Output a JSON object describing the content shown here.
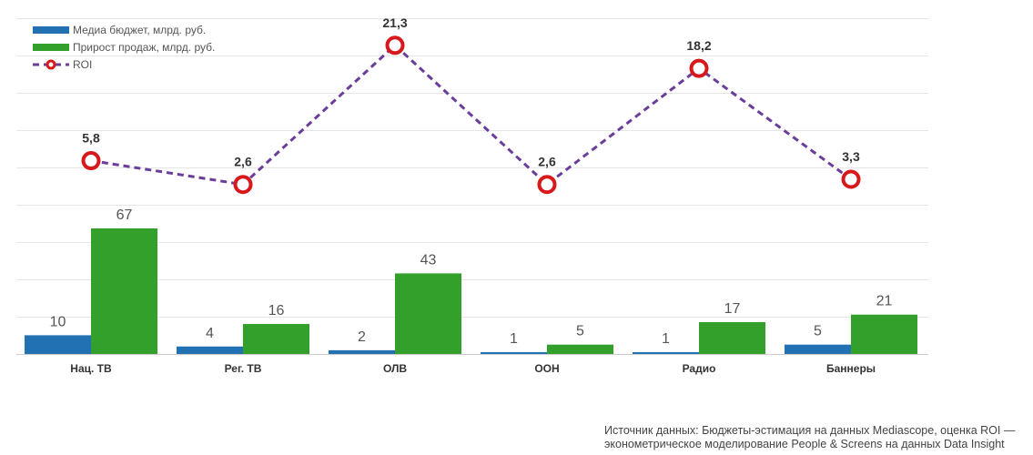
{
  "chart_data": {
    "type": "bar+line",
    "categories": [
      "Нац. ТВ",
      "Рег. ТВ",
      "ОЛВ",
      "ООН",
      "Радио",
      "Баннеры"
    ],
    "series": [
      {
        "name": "Медиа бюджет, млрд. руб.",
        "type": "bar",
        "color": "#2271b3",
        "values": [
          10,
          4,
          2,
          1,
          1,
          5
        ],
        "labels": [
          "10",
          "4",
          "2",
          "1",
          "1",
          "5"
        ]
      },
      {
        "name": "Прирост продаж, млрд. руб.",
        "type": "bar",
        "color": "#33a02c",
        "values": [
          67,
          16,
          43,
          5,
          17,
          21
        ],
        "labels": [
          "67",
          "16",
          "43",
          "5",
          "17",
          "21"
        ]
      },
      {
        "name": "ROI",
        "type": "line",
        "color": "#6a3d9a",
        "marker_color": "#d7191c",
        "values": [
          5.8,
          2.6,
          21.3,
          2.6,
          18.2,
          3.3
        ],
        "labels": [
          "5,8",
          "2,6",
          "21,3",
          "2,6",
          "18,2",
          "3,3"
        ]
      }
    ],
    "legend_position": "top-left",
    "grid": true
  },
  "source": {
    "line1": "Источник данных: Бюджеты-эстимация на данных Mediascope, оценка ROI —",
    "line2": "эконометрическое моделирование People & Screens на данных Data Insight"
  }
}
